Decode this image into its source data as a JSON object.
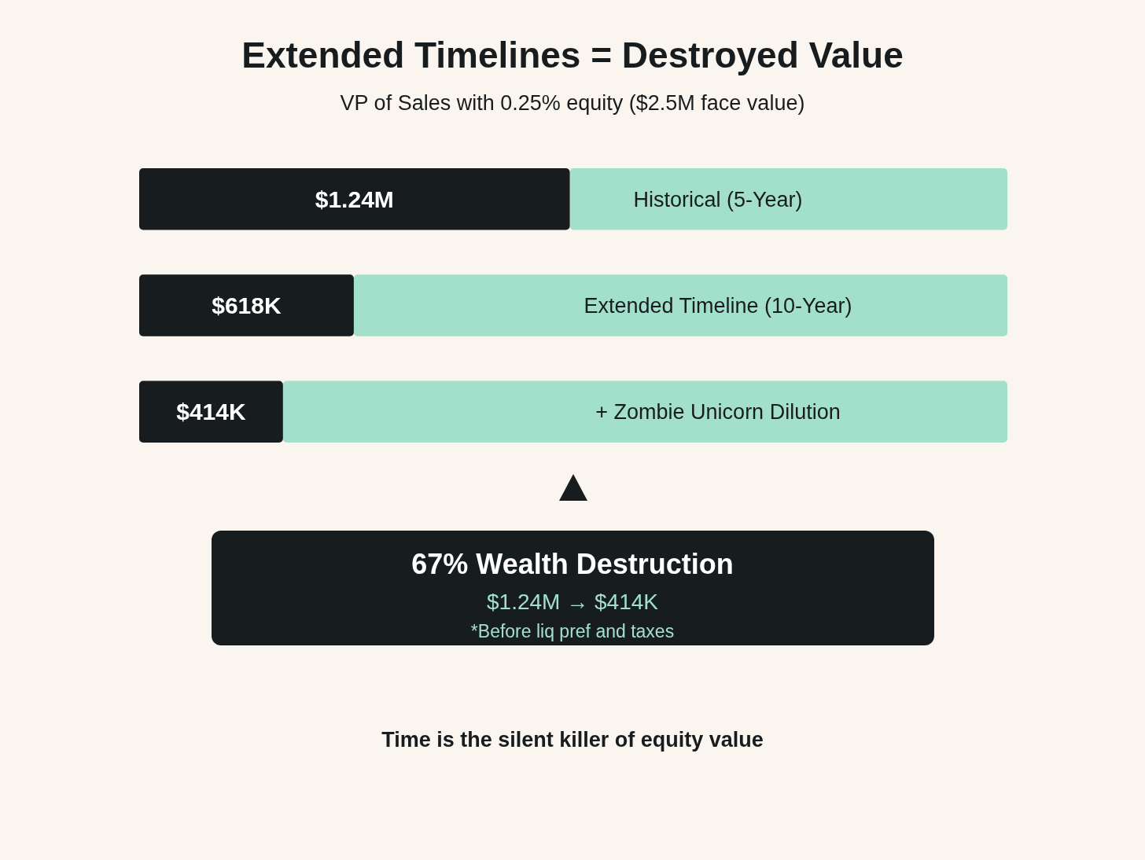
{
  "chart_data": {
    "type": "bar",
    "orientation": "horizontal",
    "stacked": true,
    "title": "Extended Timelines = Destroyed Value",
    "subtitle": "VP of Sales with 0.25% equity ($2.5M face value)",
    "categories": [
      "Historical (5-Year)",
      "Extended Timeline (10-Year)",
      "+ Zombie Unicorn Dilution"
    ],
    "series": [
      {
        "color": "#171c1f",
        "values": [
          1240000,
          618000,
          414000
        ],
        "value_labels": [
          "$1.24M",
          "$618K",
          "$414K"
        ]
      },
      {
        "color": "#a3e0cb",
        "values": [
          1260000,
          1882000,
          2086000
        ]
      }
    ],
    "xlim": [
      0,
      2500000
    ],
    "tick_labels": "y",
    "annotations": [
      "67% Wealth Destruction",
      "$1.24M → $414K",
      "*Before liq pref and taxes",
      "Time is the silent killer of equity value"
    ]
  }
}
